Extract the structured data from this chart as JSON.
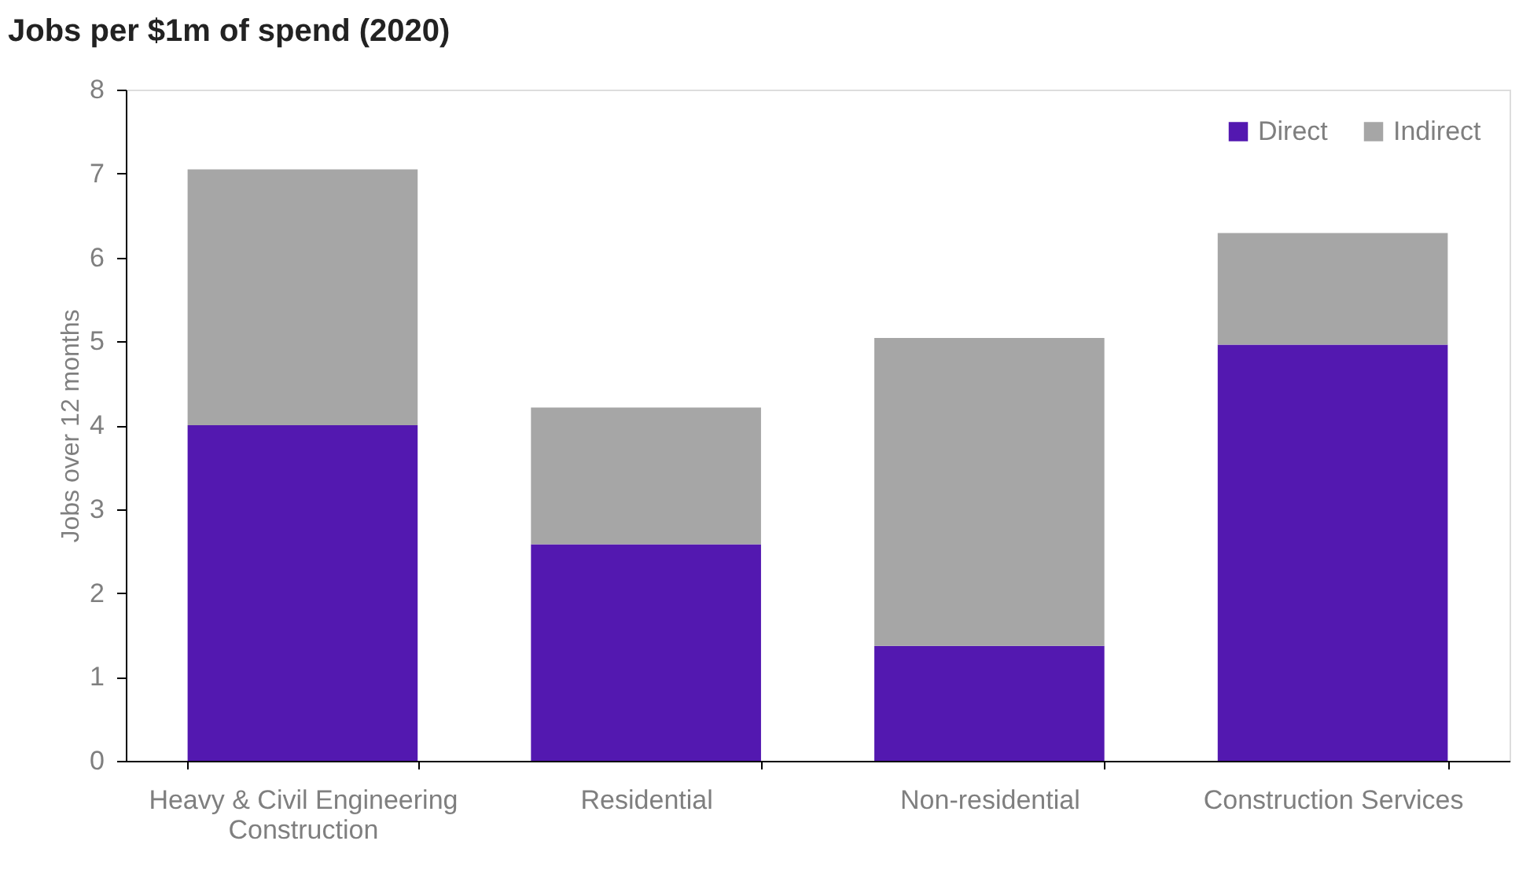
{
  "chart_data": {
    "type": "bar",
    "title": "Jobs per $1m of spend (2020)",
    "ylabel": "Jobs over 12 months",
    "categories": [
      "Heavy & Civil Engineering Construction",
      "Residential",
      "Non-residential",
      "Construction Services"
    ],
    "stacked": true,
    "series": [
      {
        "name": "Direct",
        "color": "#5318b0",
        "values": [
          4.0,
          2.58,
          1.37,
          4.96
        ]
      },
      {
        "name": "Indirect",
        "color": "#a6a6a6",
        "values": [
          3.05,
          1.63,
          3.67,
          1.33
        ]
      }
    ],
    "ylim": [
      0,
      8
    ],
    "yticks": [
      0,
      1,
      2,
      3,
      4,
      5,
      6,
      7,
      8
    ],
    "grid": false,
    "legend": "top right"
  }
}
